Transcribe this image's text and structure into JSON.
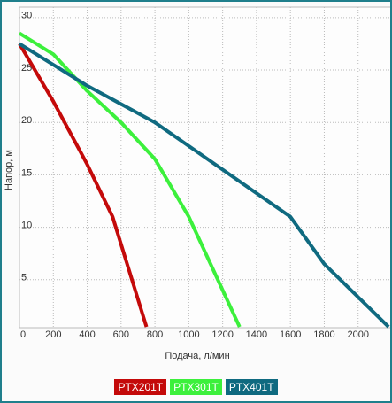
{
  "chart_data": {
    "type": "line",
    "x_label": "Подача, л/мин",
    "y_label": "Напор, м",
    "xlim": [
      0,
      2200
    ],
    "ylim": [
      0,
      31
    ],
    "xticks": [
      0,
      200,
      400,
      600,
      800,
      1000,
      1200,
      1400,
      1600,
      1800,
      2000
    ],
    "yticks": [
      5,
      10,
      15,
      20,
      25,
      30
    ],
    "grid": true,
    "series": [
      {
        "name": "PTX201T",
        "color": "#c40a0a",
        "x": [
          0,
          200,
          400,
          550,
          750
        ],
        "values": [
          27.5,
          22,
          16,
          11,
          0.5
        ]
      },
      {
        "name": "PTX301T",
        "color": "#3cf03c",
        "x": [
          0,
          200,
          400,
          600,
          800,
          1000,
          1300
        ],
        "values": [
          28.5,
          26.5,
          23,
          20,
          16.5,
          11,
          0.5
        ]
      },
      {
        "name": "PTX401T",
        "color": "#0f6a80",
        "x": [
          0,
          400,
          800,
          1200,
          1600,
          1800,
          2180
        ],
        "values": [
          27.5,
          23.5,
          20,
          15.5,
          11,
          6.5,
          0.5
        ]
      }
    ]
  }
}
